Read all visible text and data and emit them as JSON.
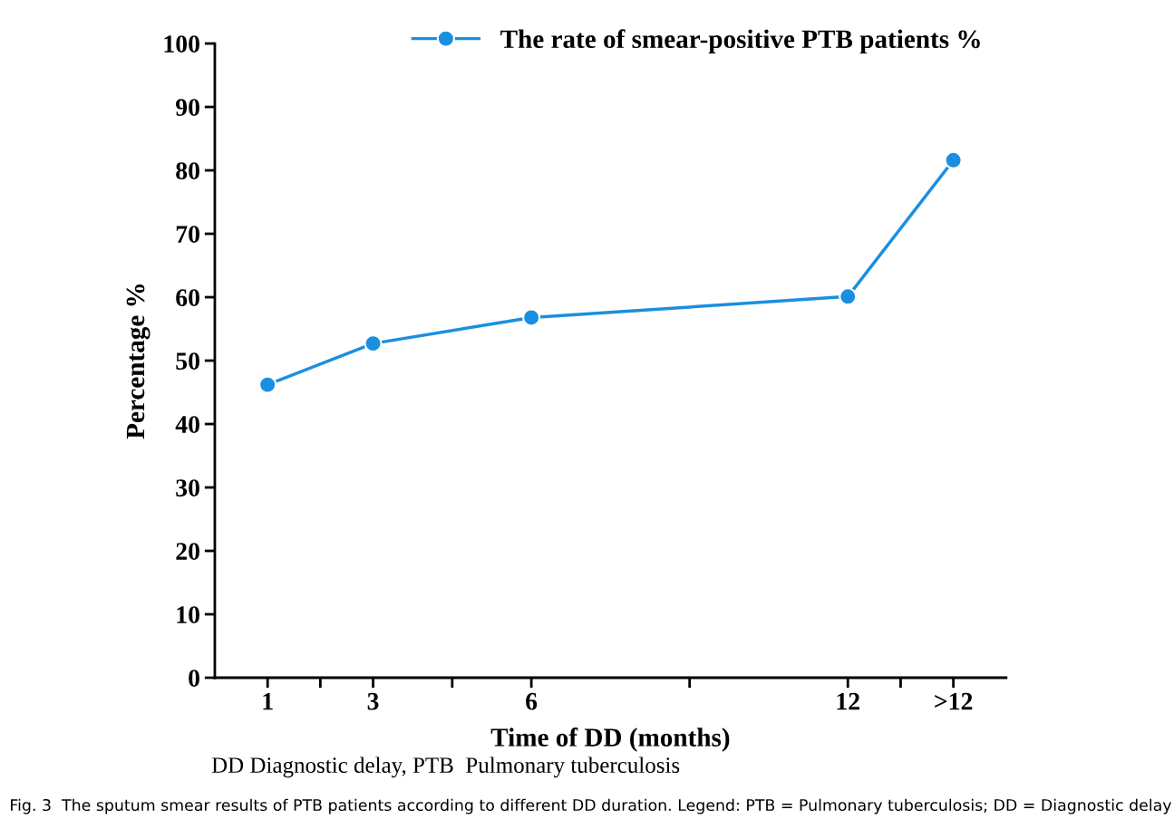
{
  "chart_data": {
    "type": "line",
    "xlabel": "Time of DD (months)",
    "ylabel": "Percentage %",
    "x": [
      1,
      3,
      6,
      12,
      14
    ],
    "series": [
      {
        "name": "The rate of smear-positive PTB patients %",
        "color": "#1a8fe0",
        "values": [
          46.2,
          52.7,
          56.8,
          60.1,
          81.6
        ]
      }
    ],
    "xlim": [
      0,
      15
    ],
    "xticks": [
      1,
      {
        "value": 2,
        "label": null
      },
      3,
      {
        "value": 4.5,
        "label": null
      },
      6,
      {
        "value": 9,
        "label": null
      },
      12,
      {
        "value": 13,
        "label": null
      },
      {
        "value": 14,
        "label": ">12"
      }
    ],
    "ylim": [
      0,
      100
    ],
    "yticks": [
      0,
      10,
      20,
      30,
      40,
      50,
      60,
      70,
      80,
      90,
      100
    ],
    "marker": "circle",
    "line_style": "solid",
    "grid": false,
    "legend": "top right",
    "annotations": [
      "DD Diagnostic delay, PTB  Pulmonary tuberculosis",
      "Fig. 3  The sputum smear results of PTB patients according to different DD duration. Legend: PTB = Pulmonary tuberculosis; DD = Diagnostic delay"
    ]
  }
}
